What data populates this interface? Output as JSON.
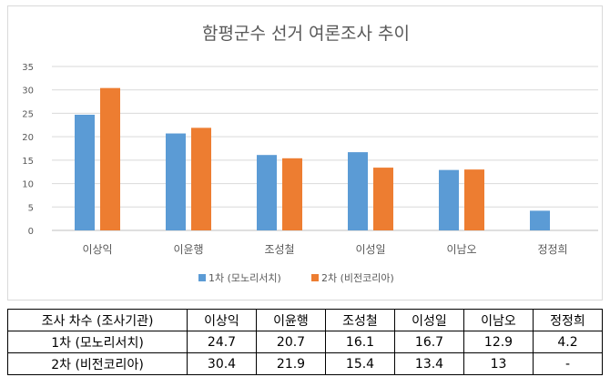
{
  "chart_data": {
    "type": "bar",
    "title": "함평군수 선거 여론조사 추이",
    "categories": [
      "이상익",
      "이윤행",
      "조성철",
      "이성일",
      "이남오",
      "정정희"
    ],
    "series": [
      {
        "name": "1차 (모노리서치)",
        "color": "#5b9bd5",
        "values": [
          24.7,
          20.7,
          16.1,
          16.7,
          12.9,
          4.2
        ]
      },
      {
        "name": "2차 (비전코리아)",
        "color": "#ed7d31",
        "values": [
          30.4,
          21.9,
          15.4,
          13.4,
          13,
          null
        ]
      }
    ],
    "ylim": [
      0,
      35
    ],
    "yticks": [
      0,
      5,
      10,
      15,
      20,
      25,
      30,
      35
    ],
    "grid": true,
    "legend": "bottom"
  },
  "table": {
    "header": [
      "조사 차수 (조사기관)",
      "이상익",
      "이윤행",
      "조성철",
      "이성일",
      "이남오",
      "정정희"
    ],
    "rows": [
      [
        "1차 (모노리서치)",
        "24.7",
        "20.7",
        "16.1",
        "16.7",
        "12.9",
        "4.2"
      ],
      [
        "2차 (비전코리아)",
        "30.4",
        "21.9",
        "15.4",
        "13.4",
        "13",
        "-"
      ]
    ]
  }
}
